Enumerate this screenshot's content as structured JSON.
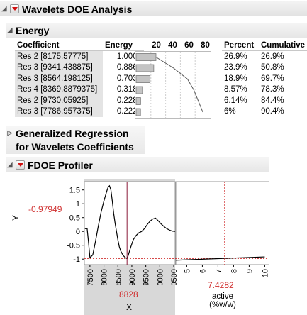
{
  "window": {
    "title": "Wavelets DOE Analysis"
  },
  "energy": {
    "title": "Energy",
    "columns": {
      "coefficient": "Coefficient",
      "energy": "Energy",
      "percent": "Percent",
      "cumulative": "Cumulative"
    },
    "axis_ticks": [
      "20",
      "40",
      "60",
      "80"
    ],
    "rows": [
      {
        "coefficient": "Res 2 [8175.57775]",
        "energy": "1.0000",
        "percent": "26.9%",
        "cumulative": "26.9%"
      },
      {
        "coefficient": "Res 3 [9341.438875]",
        "energy": "0.8865",
        "percent": "23.9%",
        "cumulative": "50.8%"
      },
      {
        "coefficient": "Res 3 [8564.198125]",
        "energy": "0.7035",
        "percent": "18.9%",
        "cumulative": "69.7%"
      },
      {
        "coefficient": "Res 4 [8369.8879375]",
        "energy": "0.3182",
        "percent": "8.57%",
        "cumulative": "78.3%"
      },
      {
        "coefficient": "Res 2 [9730.05925]",
        "energy": "0.2280",
        "percent": "6.14%",
        "cumulative": "84.4%"
      },
      {
        "coefficient": "Res 3 [7786.957375]",
        "energy": "0.2227",
        "percent": "6%",
        "cumulative": "90.4%"
      }
    ],
    "percent_values": [
      26.9,
      23.9,
      18.9,
      8.57,
      6.14,
      6
    ],
    "cumulative_values": [
      26.9,
      50.8,
      69.7,
      78.3,
      84.4,
      90.4
    ],
    "axis_range": [
      0,
      100
    ]
  },
  "gen_regression": {
    "title_line1": "Generalized Regression",
    "title_line2": "for Wavelets Coefficients"
  },
  "profiler": {
    "title": "FDOE Profiler",
    "y_label": "Y",
    "y_value": "-0.97949",
    "y_ticks": [
      "1.5",
      "1",
      "0.5",
      "0",
      "-0.5",
      "-1"
    ],
    "x_panel": {
      "value": "8828",
      "label": "X",
      "ticks": [
        "7500",
        "8000",
        "8500",
        "9000",
        "9500",
        "10000",
        "10500"
      ],
      "range": [
        7300,
        10550
      ],
      "curve_x": [
        7320,
        7400,
        7450,
        7500,
        7600,
        7700,
        7800,
        7900,
        8000,
        8100,
        8150,
        8200,
        8250,
        8300,
        8350,
        8400,
        8450,
        8500,
        8550,
        8600,
        8650,
        8700,
        8750,
        8800,
        8828,
        8860,
        8950,
        9050,
        9150,
        9250,
        9350,
        9450,
        9550,
        9650,
        9750,
        9850,
        9950,
        10050,
        10150,
        10250,
        10350,
        10450,
        10550
      ],
      "curve_y": [
        0.1,
        0.1,
        -0.4,
        -0.95,
        -0.85,
        -0.35,
        0.2,
        0.7,
        1.1,
        1.45,
        1.6,
        1.65,
        1.5,
        1.1,
        0.65,
        0.3,
        0.0,
        -0.3,
        -0.55,
        -0.7,
        -0.8,
        -0.88,
        -0.93,
        -0.97,
        -0.98,
        -0.9,
        -0.6,
        -0.3,
        -0.15,
        -0.05,
        0.0,
        0.1,
        0.25,
        0.37,
        0.45,
        0.48,
        0.38,
        0.27,
        0.18,
        0.1,
        0.05,
        0.01,
        0.0
      ]
    },
    "active_panel": {
      "value": "7.4282",
      "label_line1": "active",
      "label_line2": "(%w/w)",
      "ticks": [
        "5",
        "6",
        "7",
        "8",
        "9",
        "10"
      ],
      "range": [
        4.3,
        10.3
      ],
      "curve_x": [
        4.3,
        10.0
      ],
      "curve_y": [
        -1.04,
        -0.92
      ]
    },
    "y_range": [
      -1.2,
      1.8
    ],
    "colors": {
      "current_value": "#d03030",
      "curve": "#000000",
      "crosshair": "#8b1a3a"
    }
  }
}
